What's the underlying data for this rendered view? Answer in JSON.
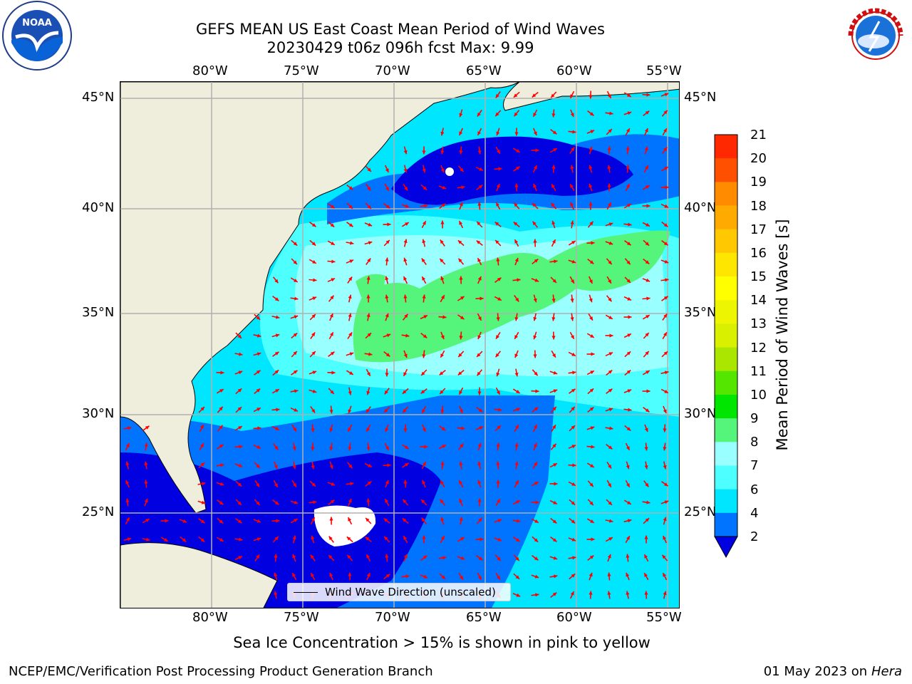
{
  "title": {
    "line1": "GEFS MEAN US East Coast Mean Period of Wind Waves",
    "line2": "20230429 t06z 096h fcst   Max: 9.99"
  },
  "axes": {
    "lon_labels": [
      "80°W",
      "75°W",
      "70°W",
      "65°W",
      "60°W",
      "55°W"
    ],
    "lat_labels": [
      "45°N",
      "40°N",
      "35°N",
      "30°N",
      "25°N"
    ]
  },
  "legend": {
    "label": "Wind Wave Direction (unscaled)"
  },
  "colorbar": {
    "label": "Mean Period of Wind Waves [s]",
    "ticks": [
      "2",
      "4",
      "6",
      "7",
      "8",
      "9",
      "10",
      "11",
      "12",
      "13",
      "14",
      "15",
      "16",
      "17",
      "18",
      "19",
      "20",
      "21"
    ],
    "colors": [
      "#0073ff",
      "#00e6ff",
      "#4dffff",
      "#99ffff",
      "#55f47a",
      "#00e600",
      "#55e600",
      "#aae600",
      "#d9f000",
      "#eef500",
      "#ffff00",
      "#ffe600",
      "#ffc800",
      "#ffaa00",
      "#ff8c00",
      "#ff5000",
      "#ff2800",
      "#ff0000"
    ],
    "under_color": "#0000e0"
  },
  "footnote": "Sea Ice Concentration > 15% is shown in pink to yellow",
  "credit_left": "NCEP/EMC/Verification Post Processing Product Generation Branch",
  "credit_right": {
    "date": "01 May 2023 on",
    "host": "Hera"
  },
  "logos": {
    "noaa": "NOAA",
    "nws": "NATIONAL WEATHER SERVICE"
  },
  "colors": {
    "land": "#efeedc",
    "arrow": "#ff0000",
    "grid": "#b0b0b0"
  }
}
